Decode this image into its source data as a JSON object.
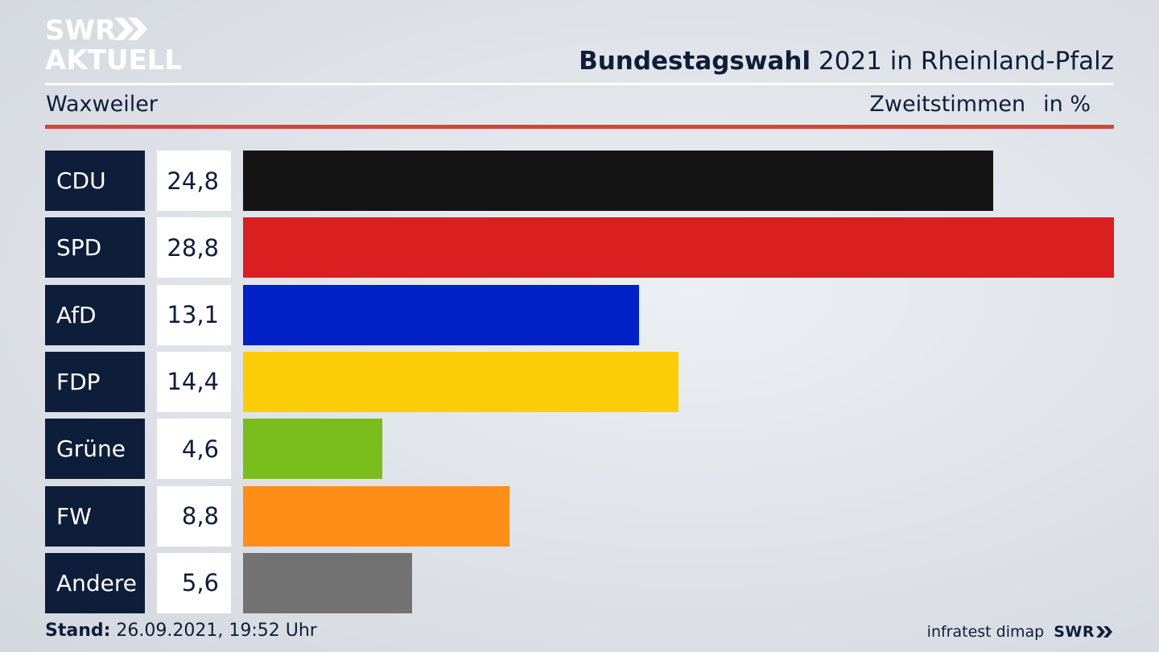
{
  "logo": {
    "line1": "SWR",
    "line2": "AKTUELL",
    "icon": "chevron-double-right-icon"
  },
  "header": {
    "title_bold": "Bundestagswahl",
    "title_rest": "2021 in Rheinland-Pfalz",
    "location": "Waxweiler",
    "measure": "Zweitstimmen",
    "unit": "in %"
  },
  "chart_data": {
    "type": "bar",
    "orientation": "horizontal",
    "categories": [
      "CDU",
      "SPD",
      "AfD",
      "FDP",
      "Grüne",
      "FW",
      "Andere"
    ],
    "values": [
      24.8,
      28.8,
      13.1,
      14.4,
      4.6,
      8.8,
      5.6
    ],
    "value_labels": [
      "24,8",
      "28,8",
      "13,1",
      "14,4",
      "4,6",
      "8,8",
      "5,6"
    ],
    "colors": [
      "#141414",
      "#d91f1f",
      "#0021c6",
      "#fdcc08",
      "#79bd1c",
      "#fd8e17",
      "#727272"
    ],
    "xlim": [
      0,
      28.8
    ],
    "grid": false,
    "legend": "none"
  },
  "footer": {
    "stand_label": "Stand:",
    "stand_value": "26.09.2021, 19:52 Uhr",
    "source": "infratest dimap",
    "brand": "SWR"
  }
}
